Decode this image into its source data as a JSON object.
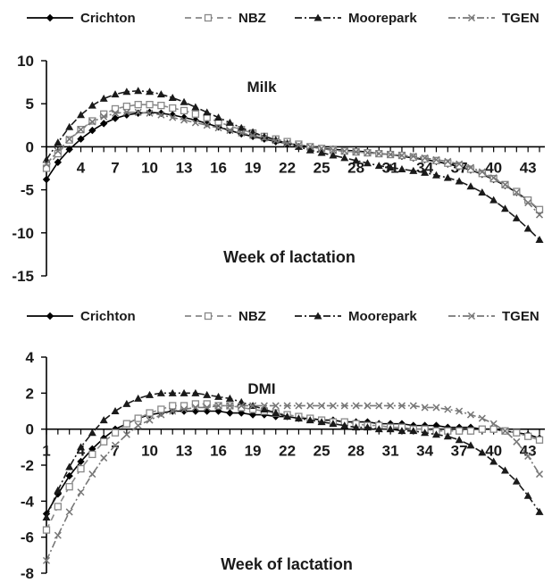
{
  "chart_data": [
    {
      "type": "line",
      "title": "Milk",
      "xlabel": "Week of lactation",
      "ylabel": "",
      "ylim": [
        -15,
        10
      ],
      "yticks": [
        -15,
        -10,
        -5,
        0,
        5,
        10
      ],
      "xlim": [
        1,
        44
      ],
      "xtick_labels": [
        4,
        7,
        10,
        13,
        16,
        19,
        22,
        25,
        28,
        31,
        34,
        37,
        40,
        43
      ],
      "grid": false,
      "legend_position": "top",
      "series": [
        {
          "name": "Crichton",
          "color": "#000000",
          "marker": "diamond",
          "style": "solid",
          "values": [
            -3.8,
            -1.8,
            -0.3,
            0.9,
            1.9,
            2.7,
            3.3,
            3.7,
            3.9,
            4.0,
            3.9,
            3.7,
            3.4,
            3.1,
            2.7,
            2.3,
            1.9,
            1.5,
            1.2,
            0.9,
            0.6,
            0.4,
            0.2,
            0.0,
            -0.2,
            -0.3,
            -0.4,
            -0.5,
            -0.6,
            -0.8,
            -0.9,
            -1.1,
            -1.3,
            -1.5,
            -1.7,
            -2.0,
            -2.3,
            -2.7,
            -3.2,
            -3.8,
            -4.5,
            -5.3,
            -6.2,
            -7.4
          ]
        },
        {
          "name": "NBZ",
          "color": "#888888",
          "marker": "open-square",
          "style": "dash",
          "values": [
            -2.5,
            -0.8,
            0.8,
            2.0,
            3.0,
            3.8,
            4.4,
            4.7,
            4.9,
            4.9,
            4.8,
            4.5,
            4.2,
            3.8,
            3.4,
            2.9,
            2.4,
            2.0,
            1.6,
            1.2,
            0.9,
            0.6,
            0.3,
            0.0,
            -0.2,
            -0.4,
            -0.5,
            -0.6,
            -0.7,
            -0.8,
            -0.9,
            -1.0,
            -1.2,
            -1.4,
            -1.6,
            -1.9,
            -2.2,
            -2.6,
            -3.1,
            -3.7,
            -4.4,
            -5.2,
            -6.2,
            -7.3
          ]
        },
        {
          "name": "Moorepark",
          "color": "#1a1a1a",
          "marker": "triangle",
          "style": "dash-dot",
          "values": [
            -1.5,
            0.5,
            2.3,
            3.7,
            4.8,
            5.6,
            6.1,
            6.4,
            6.5,
            6.4,
            6.1,
            5.7,
            5.2,
            4.6,
            4.0,
            3.4,
            2.8,
            2.2,
            1.7,
            1.2,
            0.8,
            0.4,
            0.0,
            -0.4,
            -0.7,
            -1.0,
            -1.3,
            -1.6,
            -1.9,
            -2.2,
            -2.4,
            -2.6,
            -2.8,
            -3.0,
            -3.3,
            -3.6,
            -4.0,
            -4.6,
            -5.3,
            -6.2,
            -7.2,
            -8.3,
            -9.5,
            -10.8
          ]
        },
        {
          "name": "TGEN",
          "color": "#777777",
          "marker": "x",
          "style": "dash-dot",
          "values": [
            -2.0,
            -0.5,
            0.9,
            2.0,
            2.9,
            3.5,
            3.9,
            4.0,
            4.0,
            3.9,
            3.7,
            3.4,
            3.1,
            2.8,
            2.5,
            2.2,
            1.9,
            1.6,
            1.3,
            1.0,
            0.7,
            0.4,
            0.2,
            0.0,
            -0.2,
            -0.4,
            -0.5,
            -0.6,
            -0.7,
            -0.8,
            -0.9,
            -1.0,
            -1.1,
            -1.3,
            -1.5,
            -1.7,
            -2.0,
            -2.4,
            -2.9,
            -3.6,
            -4.4,
            -5.3,
            -6.5,
            -7.9
          ]
        }
      ]
    },
    {
      "type": "line",
      "title": "DMI",
      "xlabel": "Week of lactation",
      "ylabel": "",
      "ylim": [
        -8,
        4
      ],
      "yticks": [
        -8,
        -6,
        -4,
        -2,
        0,
        2,
        4
      ],
      "xlim": [
        1,
        44
      ],
      "xtick_labels": [
        1,
        4,
        7,
        10,
        13,
        16,
        19,
        22,
        25,
        28,
        31,
        34,
        37,
        40,
        43
      ],
      "grid": false,
      "legend_position": "top",
      "series": [
        {
          "name": "Crichton",
          "color": "#000000",
          "marker": "diamond",
          "style": "solid",
          "values": [
            -4.7,
            -3.6,
            -2.6,
            -1.8,
            -1.1,
            -0.5,
            0.0,
            0.3,
            0.6,
            0.8,
            0.9,
            1.0,
            1.0,
            1.0,
            1.0,
            1.0,
            0.9,
            0.9,
            0.8,
            0.8,
            0.7,
            0.7,
            0.6,
            0.6,
            0.5,
            0.5,
            0.4,
            0.4,
            0.4,
            0.3,
            0.3,
            0.3,
            0.2,
            0.2,
            0.2,
            0.1,
            0.1,
            0.1,
            0.0,
            0.0,
            -0.1,
            -0.2,
            -0.3,
            -0.5
          ]
        },
        {
          "name": "NBZ",
          "color": "#888888",
          "marker": "open-square",
          "style": "dash",
          "values": [
            -5.6,
            -4.3,
            -3.2,
            -2.2,
            -1.4,
            -0.7,
            -0.2,
            0.3,
            0.6,
            0.9,
            1.1,
            1.3,
            1.3,
            1.4,
            1.4,
            1.3,
            1.3,
            1.2,
            1.1,
            1.0,
            0.9,
            0.8,
            0.7,
            0.6,
            0.5,
            0.4,
            0.4,
            0.3,
            0.2,
            0.2,
            0.1,
            0.1,
            0.0,
            0.0,
            -0.1,
            -0.1,
            -0.1,
            -0.1,
            0.0,
            0.0,
            -0.1,
            -0.2,
            -0.4,
            -0.6
          ]
        },
        {
          "name": "Moorepark",
          "color": "#1a1a1a",
          "marker": "triangle",
          "style": "dash-dot",
          "values": [
            -4.9,
            -3.4,
            -2.1,
            -1.0,
            -0.2,
            0.5,
            1.0,
            1.4,
            1.7,
            1.9,
            2.0,
            2.0,
            2.0,
            2.0,
            1.9,
            1.8,
            1.7,
            1.5,
            1.3,
            1.1,
            0.9,
            0.7,
            0.6,
            0.5,
            0.4,
            0.3,
            0.2,
            0.1,
            0.1,
            0.0,
            0.0,
            -0.1,
            -0.1,
            -0.2,
            -0.3,
            -0.4,
            -0.6,
            -0.9,
            -1.3,
            -1.8,
            -2.3,
            -2.9,
            -3.7,
            -4.6
          ]
        },
        {
          "name": "TGEN",
          "color": "#777777",
          "marker": "x",
          "style": "dash-dot",
          "values": [
            -7.3,
            -5.9,
            -4.6,
            -3.5,
            -2.5,
            -1.6,
            -0.9,
            -0.3,
            0.2,
            0.5,
            0.8,
            1.0,
            1.1,
            1.2,
            1.2,
            1.3,
            1.3,
            1.3,
            1.3,
            1.3,
            1.3,
            1.3,
            1.3,
            1.3,
            1.3,
            1.3,
            1.3,
            1.3,
            1.3,
            1.3,
            1.3,
            1.3,
            1.3,
            1.2,
            1.2,
            1.1,
            1.0,
            0.8,
            0.6,
            0.3,
            -0.1,
            -0.7,
            -1.5,
            -2.5
          ]
        }
      ]
    }
  ]
}
